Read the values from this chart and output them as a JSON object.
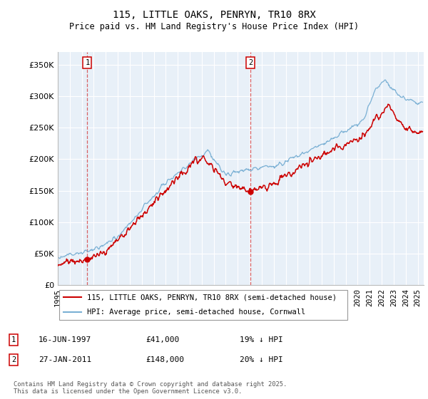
{
  "title": "115, LITTLE OAKS, PENRYN, TR10 8RX",
  "subtitle": "Price paid vs. HM Land Registry's House Price Index (HPI)",
  "ylabel_ticks": [
    "£0",
    "£50K",
    "£100K",
    "£150K",
    "£200K",
    "£250K",
    "£300K",
    "£350K"
  ],
  "ytick_values": [
    0,
    50000,
    100000,
    150000,
    200000,
    250000,
    300000,
    350000
  ],
  "ylim": [
    0,
    370000
  ],
  "xlim_start": 1995.0,
  "xlim_end": 2025.5,
  "red_line_color": "#cc0000",
  "blue_line_color": "#7ab0d4",
  "vline_color": "#cc0000",
  "vline1_x": 1997.46,
  "vline2_x": 2011.07,
  "marker1_x": 1997.46,
  "marker1_y": 41000,
  "marker2_x": 2011.07,
  "marker2_y": 148000,
  "legend_line1": "115, LITTLE OAKS, PENRYN, TR10 8RX (semi-detached house)",
  "legend_line2": "HPI: Average price, semi-detached house, Cornwall",
  "annotation1_date": "16-JUN-1997",
  "annotation1_price": "£41,000",
  "annotation1_hpi": "19% ↓ HPI",
  "annotation2_date": "27-JAN-2011",
  "annotation2_price": "£148,000",
  "annotation2_hpi": "20% ↓ HPI",
  "footer": "Contains HM Land Registry data © Crown copyright and database right 2025.\nThis data is licensed under the Open Government Licence v3.0.",
  "background_color": "#ffffff",
  "chart_bg_color": "#e8f0f8",
  "grid_color": "#ffffff",
  "xticks": [
    1995,
    1996,
    1997,
    1998,
    1999,
    2000,
    2001,
    2002,
    2003,
    2004,
    2005,
    2006,
    2007,
    2008,
    2009,
    2010,
    2011,
    2012,
    2013,
    2014,
    2015,
    2016,
    2017,
    2018,
    2019,
    2020,
    2021,
    2022,
    2023,
    2024,
    2025
  ]
}
